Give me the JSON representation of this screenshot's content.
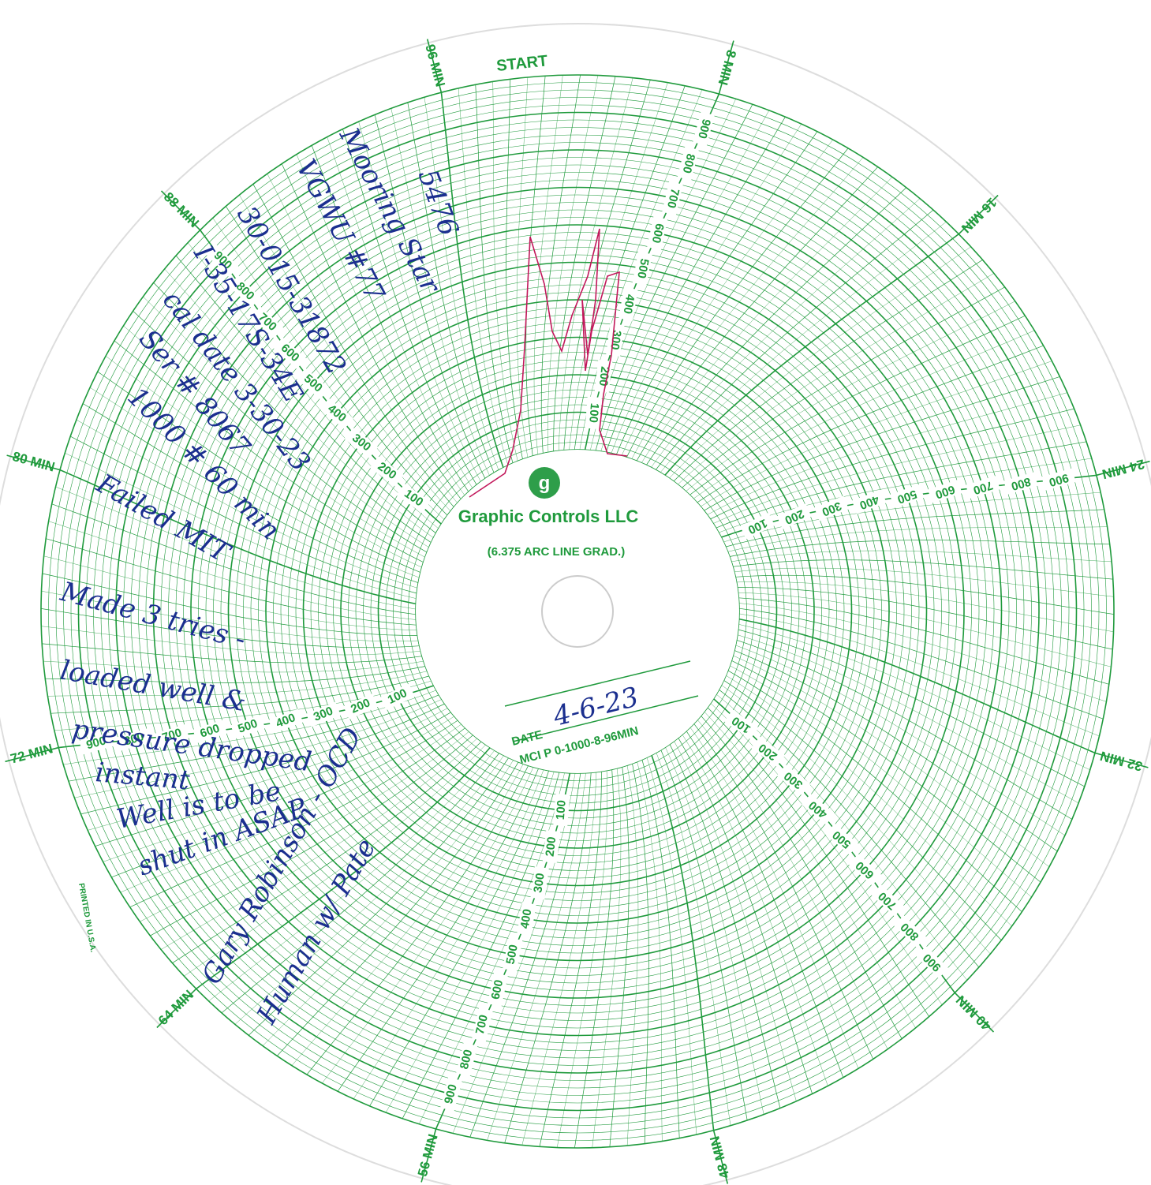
{
  "header": {
    "start": "START",
    "brand": "Graphic Controls LLC",
    "grad": "(6.375 ARC LINE GRAD.)",
    "printed": "PRINTED IN U.S.A."
  },
  "minute_labels": [
    "8 MIN",
    "16 MIN",
    "24 MIN",
    "32 MIN",
    "40 MIN",
    "48 MIN",
    "56 MIN",
    "64 MIN",
    "72 MIN",
    "80 MIN",
    "88 MIN",
    "96 MIN"
  ],
  "scale_labels": [
    "100",
    "200",
    "300",
    "400",
    "500",
    "600",
    "700",
    "800",
    "900"
  ],
  "footer": {
    "date_label": "DATE",
    "date": "4-6-23",
    "model": "MCI P 0-1000-8-96MIN"
  },
  "notes": [
    "5476",
    "Mooring Star",
    "VGWU #77",
    "30-015-31872",
    "I-35-17S-34E",
    "cal date 3-30-23",
    "Ser # 8067",
    "1000 # 60 min",
    "Failed MIT",
    "Made 3 tries -",
    "loaded well &",
    "pressure dropped",
    "instant",
    "Well is to be",
    "shut in ASAP",
    "Gary Robinson - OCD",
    "Human w/ Pate"
  ]
}
